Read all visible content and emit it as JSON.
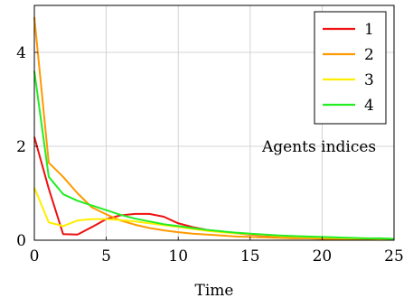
{
  "chart_data": {
    "type": "line",
    "xlabel": "Time",
    "ylabel": "",
    "xlim": [
      0,
      25
    ],
    "ylim": [
      0,
      5
    ],
    "xticks": [
      0,
      5,
      10,
      15,
      20,
      25
    ],
    "yticks": [
      0,
      2,
      4
    ],
    "grid": true,
    "legend_position": "top-right",
    "annotation": "Agents indices",
    "x": [
      0,
      1,
      2,
      3,
      4,
      5,
      6,
      7,
      8,
      9,
      10,
      11,
      12,
      13,
      14,
      15,
      16,
      17,
      18,
      19,
      20,
      21,
      22,
      23,
      24,
      25
    ],
    "series": [
      {
        "name": "1",
        "color": "#ee1111",
        "values": [
          2.2,
          1.1,
          0.13,
          0.12,
          0.28,
          0.45,
          0.53,
          0.56,
          0.56,
          0.5,
          0.36,
          0.28,
          0.22,
          0.18,
          0.15,
          0.12,
          0.1,
          0.08,
          0.07,
          0.06,
          0.05,
          0.04,
          0.03,
          0.03,
          0.02,
          0.02
        ]
      },
      {
        "name": "2",
        "color": "#ff9900",
        "values": [
          4.75,
          1.65,
          1.35,
          1.0,
          0.7,
          0.55,
          0.42,
          0.33,
          0.26,
          0.21,
          0.17,
          0.14,
          0.12,
          0.1,
          0.08,
          0.07,
          0.06,
          0.05,
          0.04,
          0.04,
          0.03,
          0.03,
          0.02,
          0.02,
          0.02,
          0.02
        ]
      },
      {
        "name": "3",
        "color": "#ffee00",
        "values": [
          1.12,
          0.38,
          0.3,
          0.42,
          0.45,
          0.45,
          0.43,
          0.4,
          0.36,
          0.32,
          0.28,
          0.24,
          0.2,
          0.17,
          0.15,
          0.13,
          0.11,
          0.09,
          0.08,
          0.07,
          0.06,
          0.05,
          0.04,
          0.04,
          0.03,
          0.03
        ]
      },
      {
        "name": "4",
        "color": "#22ee22",
        "values": [
          3.6,
          1.35,
          0.98,
          0.84,
          0.74,
          0.64,
          0.54,
          0.46,
          0.4,
          0.34,
          0.3,
          0.26,
          0.22,
          0.19,
          0.16,
          0.14,
          0.12,
          0.1,
          0.09,
          0.08,
          0.07,
          0.06,
          0.05,
          0.04,
          0.04,
          0.03
        ]
      }
    ]
  }
}
